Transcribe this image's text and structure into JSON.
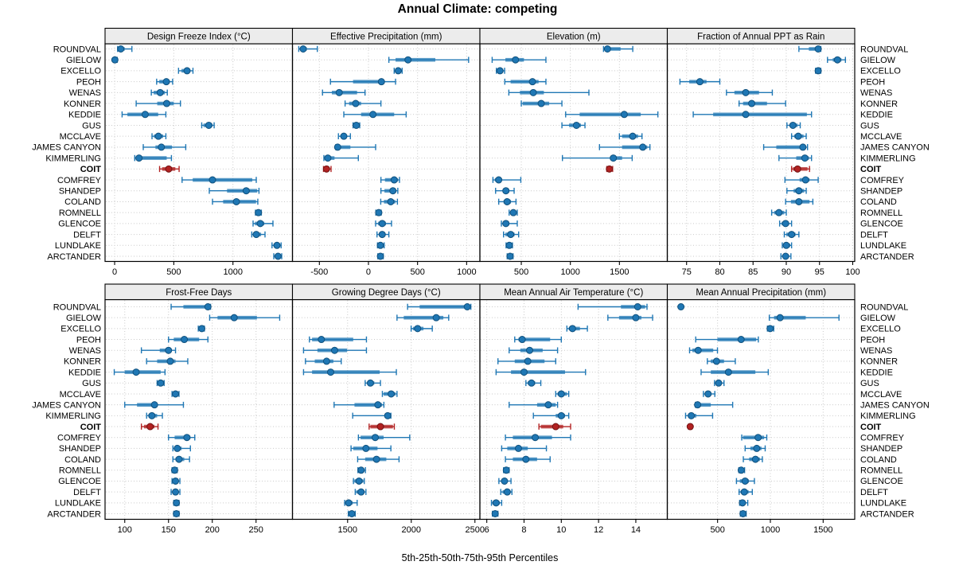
{
  "title": "Annual Climate: competing",
  "caption": "5th-25th-50th-75th-95th Percentiles",
  "sites": [
    "ROUNDVAL",
    "GIELOW",
    "EXCELLO",
    "PEOH",
    "WENAS",
    "KONNER",
    "KEDDIE",
    "GUS",
    "MCCLAVE",
    "JAMES CANYON",
    "KIMMERLING",
    "COIT",
    "COMFREY",
    "SHANDEP",
    "COLAND",
    "ROMNELL",
    "GLENCOE",
    "DELFT",
    "LUNDLAKE",
    "ARCTANDER"
  ],
  "highlight_site": "COIT",
  "colors": {
    "normal": "#1f77b4",
    "normal_dark": "#10507c",
    "highlight": "#b22222",
    "highlight_dark": "#701212",
    "grid": "#c9c9c9",
    "strip_bg": "#ececec"
  },
  "chart_data": [
    {
      "type": "percentile-dotplot",
      "title": "Design Freeze Index (°C)",
      "percentile_labels": [
        "5th",
        "25th",
        "50th",
        "75th",
        "95th"
      ],
      "ticks": [
        "0",
        "500",
        "1000"
      ],
      "tick_values": [
        0,
        500,
        1000
      ],
      "xlim": [
        -81,
        1503
      ],
      "series": [
        [
          25,
          32,
          52,
          85,
          146
        ],
        [
          -2,
          0,
          2,
          10,
          22
        ],
        [
          540,
          565,
          612,
          640,
          662
        ],
        [
          355,
          377,
          437,
          465,
          490
        ],
        [
          310,
          330,
          385,
          425,
          445
        ],
        [
          182,
          360,
          440,
          500,
          556
        ],
        [
          63,
          108,
          258,
          368,
          433
        ],
        [
          736,
          751,
          796,
          826,
          841
        ],
        [
          316,
          332,
          370,
          410,
          433
        ],
        [
          242,
          345,
          395,
          485,
          601
        ],
        [
          170,
          190,
          206,
          440,
          480
        ],
        [
          380,
          401,
          457,
          513,
          545
        ],
        [
          570,
          660,
          827,
          1163,
          1197
        ],
        [
          800,
          950,
          1112,
          1205,
          1220
        ],
        [
          827,
          917,
          1029,
          1195,
          1210
        ],
        [
          1190,
          1199,
          1215,
          1231,
          1240
        ],
        [
          1170,
          1186,
          1231,
          1265,
          1338
        ],
        [
          1159,
          1172,
          1197,
          1238,
          1271
        ],
        [
          1330,
          1343,
          1372,
          1397,
          1407
        ],
        [
          1345,
          1354,
          1381,
          1403,
          1412
        ]
      ]
    },
    {
      "type": "percentile-dotplot",
      "title": "Effective Precipitation (mm)",
      "percentile_labels": [
        "5th",
        "25th",
        "50th",
        "75th",
        "95th"
      ],
      "ticks": [
        "-500",
        "0",
        "500",
        "1000"
      ],
      "tick_values": [
        -500,
        0,
        500,
        1000
      ],
      "xlim": [
        -774,
        1135
      ],
      "series": [
        [
          -710,
          -692,
          -665,
          -628,
          -521
        ],
        [
          208,
          276,
          403,
          681,
          1020
        ],
        [
          262,
          284,
          303,
          325,
          343
        ],
        [
          -387,
          -157,
          132,
          155,
          276
        ],
        [
          -468,
          -373,
          -298,
          -116,
          -35
        ],
        [
          -238,
          -197,
          -130,
          -75,
          127
        ],
        [
          -251,
          -75,
          46,
          262,
          384
        ],
        [
          -157,
          -140,
          -124,
          -105,
          -89
        ],
        [
          -306,
          -277,
          -251,
          -224,
          -184
        ],
        [
          -333,
          -324,
          -314,
          -184,
          73
        ],
        [
          -454,
          -440,
          -414,
          -346,
          -103
        ],
        [
          -458,
          -441,
          -427,
          -398,
          -381
        ],
        [
          127,
          168,
          262,
          301,
          316
        ],
        [
          127,
          163,
          249,
          281,
          299
        ],
        [
          125,
          158,
          227,
          274,
          295
        ],
        [
          75,
          89,
          105,
          121,
          130
        ],
        [
          73,
          98,
          140,
          178,
          235
        ],
        [
          87,
          110,
          140,
          170,
          208
        ],
        [
          92,
          105,
          122,
          141,
          160
        ],
        [
          95,
          109,
          122,
          135,
          151
        ]
      ]
    },
    {
      "type": "percentile-dotplot",
      "title": "Elevation (m)",
      "percentile_labels": [
        "5th",
        "25th",
        "50th",
        "75th",
        "95th"
      ],
      "ticks": [
        "500",
        "1000",
        "1500"
      ],
      "tick_values": [
        500,
        1000,
        1500
      ],
      "xlim": [
        78,
        1988
      ],
      "series": [
        [
          1338,
          1348,
          1378,
          1512,
          1636
        ],
        [
          203,
          338,
          441,
          527,
          751
        ],
        [
          246,
          259,
          283,
          316,
          330
        ],
        [
          332,
          391,
          614,
          676,
          751
        ],
        [
          373,
          486,
          622,
          730,
          1189
        ],
        [
          500,
          514,
          703,
          784,
          914
        ],
        [
          952,
          1095,
          1549,
          1717,
          1892
        ],
        [
          914,
          987,
          1062,
          1108,
          1149
        ],
        [
          1500,
          1527,
          1635,
          1690,
          1730
        ],
        [
          1297,
          1527,
          1738,
          1784,
          1811
        ],
        [
          919,
          1406,
          1438,
          1527,
          1630
        ],
        [
          1371,
          1385,
          1398,
          1420,
          1431
        ],
        [
          211,
          230,
          270,
          296,
          495
        ],
        [
          238,
          311,
          343,
          378,
          427
        ],
        [
          270,
          319,
          356,
          395,
          446
        ],
        [
          376,
          392,
          419,
          445,
          459
        ],
        [
          297,
          311,
          343,
          378,
          459
        ],
        [
          319,
          338,
          392,
          432,
          473
        ],
        [
          345,
          356,
          378,
          400,
          410
        ],
        [
          356,
          369,
          386,
          405,
          416
        ]
      ]
    },
    {
      "type": "percentile-dotplot",
      "title": "Fraction of Annual PPT as Rain",
      "percentile_labels": [
        "5th",
        "25th",
        "50th",
        "75th",
        "95th"
      ],
      "ticks": [
        "75",
        "80",
        "85",
        "90",
        "95",
        "100"
      ],
      "tick_values": [
        75,
        80,
        85,
        90,
        95,
        100
      ],
      "xlim": [
        72.1,
        100.3
      ],
      "series": [
        [
          91.9,
          93.4,
          94.8,
          95.0,
          95.2
        ],
        [
          96.2,
          97.0,
          97.7,
          98.3,
          98.9
        ],
        [
          94.4,
          94.6,
          94.8,
          95.0,
          95.2
        ],
        [
          74.0,
          75.4,
          77.0,
          78.0,
          80.0
        ],
        [
          81.0,
          82.2,
          83.9,
          85.9,
          87.9
        ],
        [
          82.9,
          83.5,
          84.8,
          87.1,
          89.9
        ],
        [
          76.0,
          79.0,
          83.9,
          93.1,
          93.8
        ],
        [
          90.1,
          90.5,
          91.0,
          91.7,
          92.1
        ],
        [
          90.8,
          91.2,
          91.8,
          92.6,
          93.0
        ],
        [
          86.6,
          88.5,
          92.5,
          93.0,
          93.2
        ],
        [
          88.9,
          91.5,
          92.8,
          93.4,
          93.8
        ],
        [
          90.8,
          91.0,
          91.7,
          93.2,
          93.5
        ],
        [
          89.8,
          92.0,
          92.9,
          93.5,
          94.8
        ],
        [
          90.1,
          91.1,
          91.9,
          92.7,
          93.0
        ],
        [
          89.9,
          90.7,
          91.9,
          93.5,
          94.0
        ],
        [
          87.8,
          88.2,
          88.9,
          89.7,
          90.0
        ],
        [
          89.0,
          89.3,
          89.9,
          90.4,
          90.8
        ],
        [
          89.7,
          90.0,
          90.8,
          91.4,
          91.9
        ],
        [
          89.4,
          89.6,
          90.0,
          90.6,
          90.8
        ],
        [
          89.2,
          89.5,
          89.9,
          90.4,
          90.7
        ]
      ]
    },
    {
      "type": "percentile-dotplot",
      "title": "Frost-Free Days",
      "percentile_labels": [
        "5th",
        "25th",
        "50th",
        "75th",
        "95th"
      ],
      "ticks": [
        "100",
        "150",
        "200",
        "250"
      ],
      "tick_values": [
        100,
        150,
        200,
        250
      ],
      "xlim": [
        77.5,
        291.6
      ],
      "series": [
        [
          153,
          167,
          195,
          197,
          198
        ],
        [
          197,
          206,
          225,
          251,
          277
        ],
        [
          184,
          186,
          188,
          190,
          191
        ],
        [
          150,
          156,
          168,
          185,
          195
        ],
        [
          119,
          140,
          150,
          153,
          158
        ],
        [
          125,
          137,
          152,
          158,
          172
        ],
        [
          88,
          100,
          113,
          141,
          146
        ],
        [
          137,
          139,
          141,
          143,
          145
        ],
        [
          154,
          156,
          158,
          160,
          162
        ],
        [
          100,
          114,
          134,
          137,
          167
        ],
        [
          125,
          127,
          131,
          137,
          143
        ],
        [
          119,
          122,
          129,
          134,
          138
        ],
        [
          150,
          157,
          171,
          175,
          180
        ],
        [
          155,
          157,
          160,
          165,
          175
        ],
        [
          155,
          158,
          162,
          168,
          174
        ],
        [
          154,
          155,
          157,
          159,
          160
        ],
        [
          154,
          156,
          158,
          161,
          163
        ],
        [
          153,
          155,
          158,
          161,
          163
        ],
        [
          156,
          158,
          159,
          161,
          162
        ],
        [
          156,
          157,
          159,
          160,
          162
        ]
      ]
    },
    {
      "type": "percentile-dotplot",
      "title": "Growing Degree Days (°C)",
      "percentile_labels": [
        "5th",
        "25th",
        "50th",
        "75th",
        "95th"
      ],
      "ticks": [
        "1500",
        "2000",
        "2500"
      ],
      "tick_values": [
        1500,
        2000,
        2500
      ],
      "xlim": [
        1067,
        2539
      ],
      "series": [
        [
          1971,
          2066,
          2440,
          2456,
          2468
        ],
        [
          1888,
          1941,
          2196,
          2252,
          2294
        ],
        [
          1999,
          2014,
          2050,
          2096,
          2165
        ],
        [
          1200,
          1221,
          1294,
          1544,
          1648
        ],
        [
          1154,
          1263,
          1398,
          1496,
          1648
        ],
        [
          1169,
          1242,
          1335,
          1388,
          1450
        ],
        [
          1154,
          1221,
          1367,
          1752,
          1883
        ],
        [
          1638,
          1654,
          1679,
          1710,
          1758
        ],
        [
          1773,
          1783,
          1842,
          1877,
          1888
        ],
        [
          1394,
          1554,
          1738,
          1771,
          1785
        ],
        [
          1540,
          1790,
          1815,
          1831,
          1840
        ],
        [
          1669,
          1679,
          1758,
          1856,
          1867
        ],
        [
          1585,
          1602,
          1717,
          1783,
          1988
        ],
        [
          1527,
          1544,
          1644,
          1735,
          1840
        ],
        [
          1579,
          1638,
          1727,
          1804,
          1904
        ],
        [
          1581,
          1590,
          1606,
          1631,
          1640
        ],
        [
          1546,
          1554,
          1590,
          1623,
          1631
        ],
        [
          1560,
          1569,
          1606,
          1631,
          1644
        ],
        [
          1477,
          1488,
          1508,
          1540,
          1575
        ],
        [
          1506,
          1519,
          1533,
          1546,
          1560
        ]
      ]
    },
    {
      "type": "percentile-dotplot",
      "title": "Mean Annual Air Temperature (°C)",
      "percentile_labels": [
        "5th",
        "25th",
        "50th",
        "75th",
        "95th"
      ],
      "ticks": [
        "6",
        "8",
        "10",
        "12",
        "14"
      ],
      "tick_values": [
        6,
        8,
        10,
        12,
        14
      ],
      "xlim": [
        5.63,
        15.69
      ],
      "series": [
        [
          10.9,
          13.2,
          14.1,
          14.5,
          14.6
        ],
        [
          12.5,
          13.1,
          14.0,
          14.3,
          14.9
        ],
        [
          10.3,
          10.4,
          10.6,
          11.0,
          11.4
        ],
        [
          7.5,
          7.7,
          7.9,
          9.4,
          10.0
        ],
        [
          7.2,
          7.8,
          8.3,
          9.0,
          9.8
        ],
        [
          6.6,
          7.5,
          8.2,
          9.1,
          9.7
        ],
        [
          6.5,
          7.3,
          8.0,
          10.2,
          11.3
        ],
        [
          8.1,
          8.2,
          8.4,
          8.6,
          8.9
        ],
        [
          9.7,
          9.8,
          10.0,
          10.3,
          10.4
        ],
        [
          7.2,
          8.7,
          9.3,
          9.7,
          9.8
        ],
        [
          8.5,
          9.7,
          10.0,
          10.2,
          10.4
        ],
        [
          8.8,
          8.9,
          9.7,
          10.1,
          10.5
        ],
        [
          7.0,
          7.4,
          8.6,
          9.5,
          10.5
        ],
        [
          6.8,
          7.1,
          7.7,
          8.2,
          9.2
        ],
        [
          7.0,
          7.4,
          8.1,
          8.7,
          9.4
        ],
        [
          6.9,
          6.95,
          7.05,
          7.15,
          7.2
        ],
        [
          6.65,
          6.8,
          6.95,
          7.1,
          7.3
        ],
        [
          6.75,
          6.85,
          7.1,
          7.25,
          7.35
        ],
        [
          6.25,
          6.3,
          6.5,
          6.7,
          6.8
        ],
        [
          6.3,
          6.35,
          6.45,
          6.55,
          6.6
        ]
      ]
    },
    {
      "type": "percentile-dotplot",
      "title": "Mean Annual Precipitation (mm)",
      "percentile_labels": [
        "5th",
        "25th",
        "50th",
        "75th",
        "95th"
      ],
      "ticks": [
        "500",
        "1000",
        "1500"
      ],
      "tick_values": [
        500,
        1000,
        1500
      ],
      "xlim": [
        24,
        1799
      ],
      "series": [
        [
          140,
          147,
          153,
          159,
          166
        ],
        [
          990,
          1035,
          1092,
          1335,
          1650
        ],
        [
          972,
          981,
          998,
          1021,
          1032
        ],
        [
          293,
          498,
          723,
          866,
          886
        ],
        [
          235,
          261,
          316,
          459,
          499
        ],
        [
          403,
          436,
          490,
          561,
          668
        ],
        [
          344,
          436,
          603,
          858,
          980
        ],
        [
          471,
          486,
          510,
          536,
          561
        ],
        [
          366,
          381,
          410,
          441,
          474
        ],
        [
          290,
          301,
          311,
          436,
          643
        ],
        [
          197,
          221,
          251,
          299,
          453
        ],
        [
          226,
          234,
          241,
          249,
          256
        ],
        [
          729,
          741,
          884,
          941,
          966
        ],
        [
          761,
          811,
          871,
          916,
          951
        ],
        [
          744,
          799,
          859,
          901,
          924
        ],
        [
          701,
          711,
          724,
          744,
          756
        ],
        [
          679,
          711,
          761,
          796,
          849
        ],
        [
          704,
          719,
          753,
          794,
          829
        ],
        [
          709,
          721,
          736,
          764,
          786
        ],
        [
          716,
          726,
          741,
          756,
          771
        ]
      ]
    }
  ]
}
